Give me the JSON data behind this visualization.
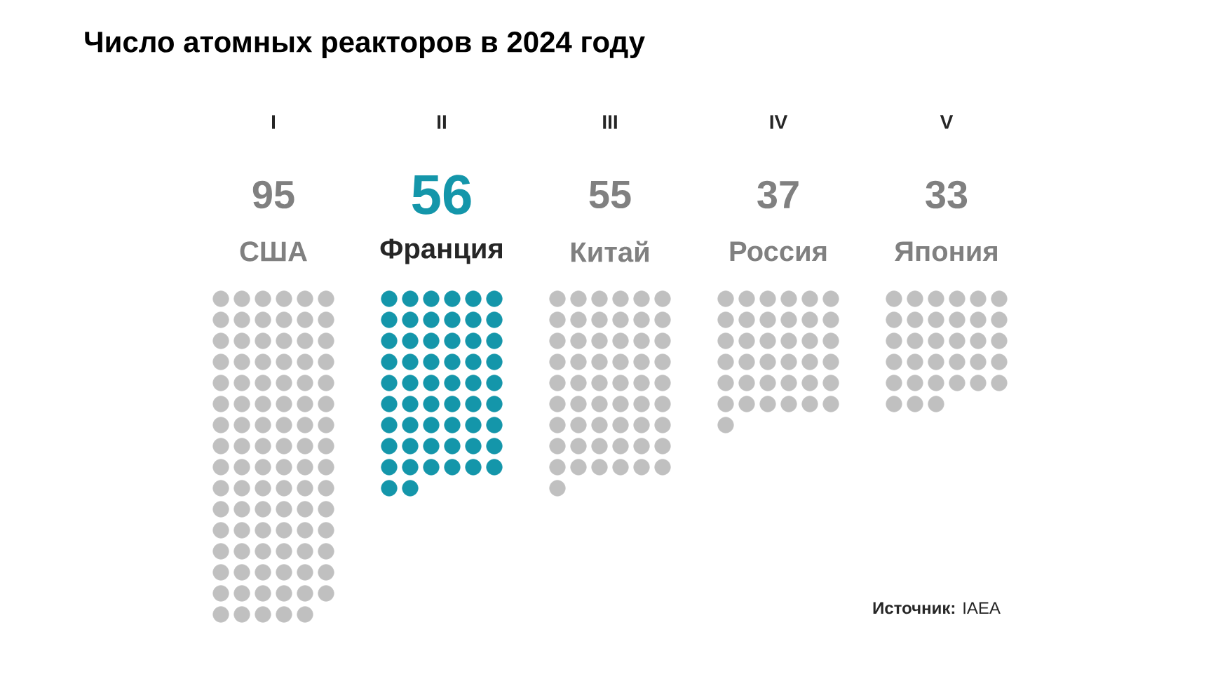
{
  "chart_data": {
    "type": "other",
    "title": "Число атомных реакторов в 2024 году",
    "categories": [
      "США",
      "Франция",
      "Китай",
      "Россия",
      "Япония"
    ],
    "values": [
      95,
      56,
      55,
      37,
      33
    ],
    "colors": [
      "#c0c0c0",
      "#1496aa",
      "#c0c0c0",
      "#c0c0c0",
      "#c0c0c0"
    ],
    "data_labels": true,
    "annotations": [
      "I",
      "II",
      "III",
      "IV",
      "V",
      "**Источник:** IAEA"
    ]
  }
}
